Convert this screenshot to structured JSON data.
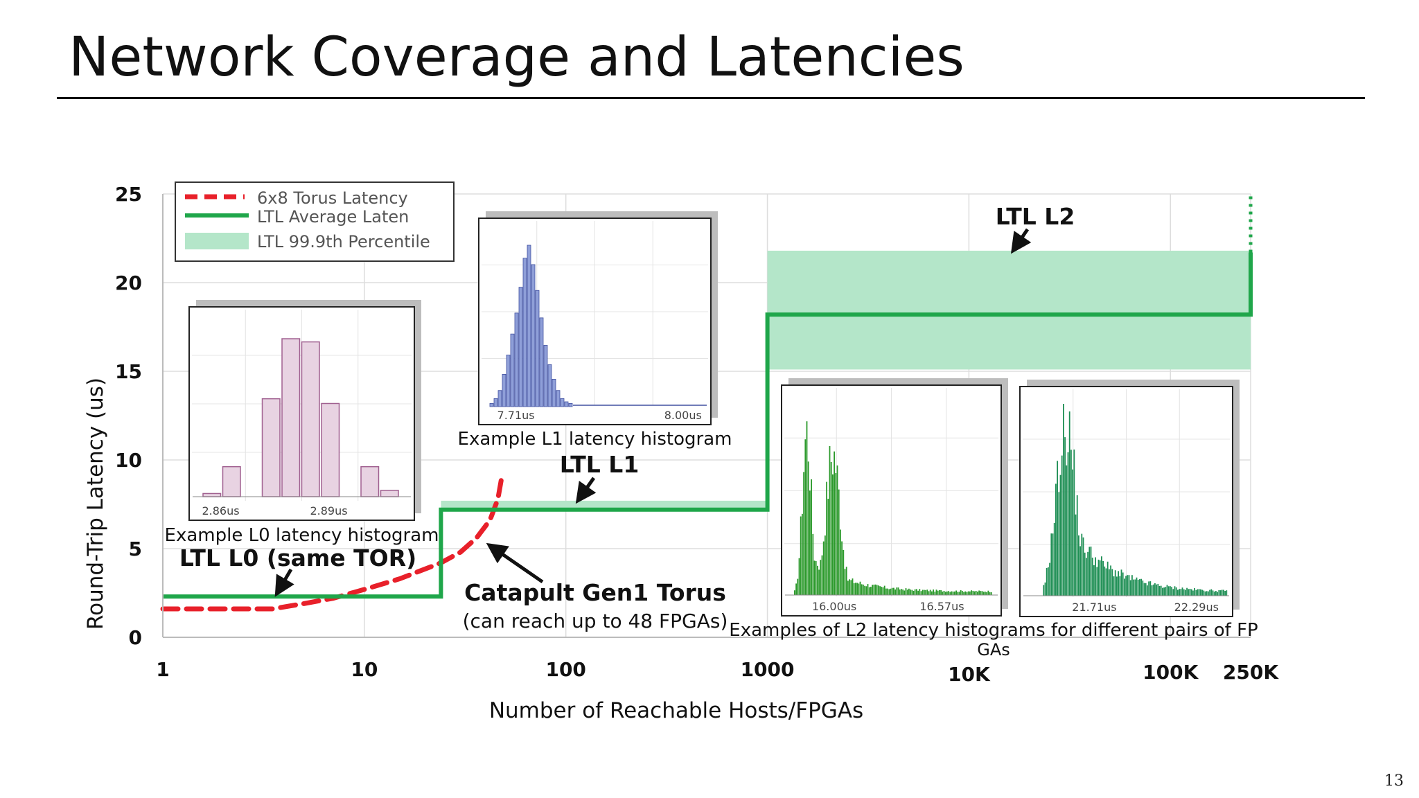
{
  "slide": {
    "title": "Network Coverage and Latencies",
    "page_number": "13"
  },
  "colors": {
    "torus": "#e8202a",
    "ltl": "#1fa64a",
    "band": "#b4e6c9",
    "l0_hist": "#e8d3e2",
    "l0_edge": "#a06090",
    "l1_hist": "#8f9fd8",
    "l1_edge": "#4050a0",
    "l2a_hist": "#2c9a2c",
    "l2b_hist": "#1f8f55"
  },
  "chart_data": {
    "type": "line",
    "xlabel": "Number of Reachable Hosts/FPGAs",
    "ylabel": "Round-Trip Latency (us)",
    "xscale": "log",
    "xlim": [
      1,
      250000
    ],
    "ylim": [
      0,
      25
    ],
    "x_ticks": [
      "1",
      "10",
      "100",
      "1000",
      "10K",
      "100K",
      "250K"
    ],
    "y_ticks": [
      "0",
      "5",
      "10",
      "15",
      "20",
      "25"
    ],
    "grid": true,
    "legend_position": "top-left",
    "series": [
      {
        "name": "6x8 Torus Latency",
        "style": "dashed",
        "x": [
          1,
          2,
          3.5,
          5,
          7,
          10,
          15,
          24,
          30,
          36,
          42,
          46,
          48
        ],
        "y": [
          1.6,
          1.6,
          1.6,
          1.9,
          2.2,
          2.7,
          3.3,
          4.2,
          4.8,
          5.6,
          6.6,
          7.8,
          9.0
        ]
      },
      {
        "name": "LTL Average Laten",
        "style": "solid",
        "x": [
          1,
          24,
          24,
          1000,
          1000,
          250000,
          250000
        ],
        "y": [
          2.3,
          2.3,
          7.2,
          7.2,
          18.2,
          18.2,
          21.7
        ]
      }
    ],
    "bands": [
      {
        "name": "LTL 99.9th Percentile",
        "segments": [
          {
            "x": [
              24,
              1000
            ],
            "y": [
              7.2,
              7.7
            ]
          },
          {
            "x": [
              1000,
              250000
            ],
            "y": [
              15.1,
              21.8
            ]
          }
        ]
      }
    ],
    "annotations": [
      {
        "text": "LTL L0 (same TOR)",
        "x": 3.5,
        "y": 2.4
      },
      {
        "text": "LTL L1",
        "x": 100,
        "y": 7.8
      },
      {
        "text": "LTL L2",
        "x": 17000,
        "y": 21.8
      },
      {
        "text": "Catapult Gen1 Torus",
        "sub": "(can reach up to 48 FPGAs)",
        "x": 40,
        "y": 5.2
      }
    ],
    "insets": [
      {
        "id": "l0",
        "caption": "Example L0 latency histogram",
        "tick_labels": [
          "2.86us",
          "2.89us"
        ],
        "values": [
          0.02,
          0.19,
          0.0,
          0.62,
          1.0,
          0.98,
          0.59,
          0.0,
          0.19,
          0.04
        ]
      },
      {
        "id": "l1",
        "caption": "Example L1 latency histogram",
        "tick_labels": [
          "7.71us",
          "8.00us"
        ],
        "values": [
          0.02,
          0.05,
          0.1,
          0.2,
          0.32,
          0.45,
          0.58,
          0.74,
          0.92,
          1.0,
          0.88,
          0.72,
          0.55,
          0.38,
          0.26,
          0.17,
          0.1,
          0.05,
          0.03,
          0.02
        ]
      },
      {
        "id": "l2a",
        "caption": "Examples of L2 latency histograms for different pairs of FP",
        "caption2": "GAs",
        "tick_labels": [
          "16.00us",
          "16.57us"
        ]
      },
      {
        "id": "l2b",
        "tick_labels": [
          "21.71us",
          "22.29us"
        ]
      }
    ]
  }
}
